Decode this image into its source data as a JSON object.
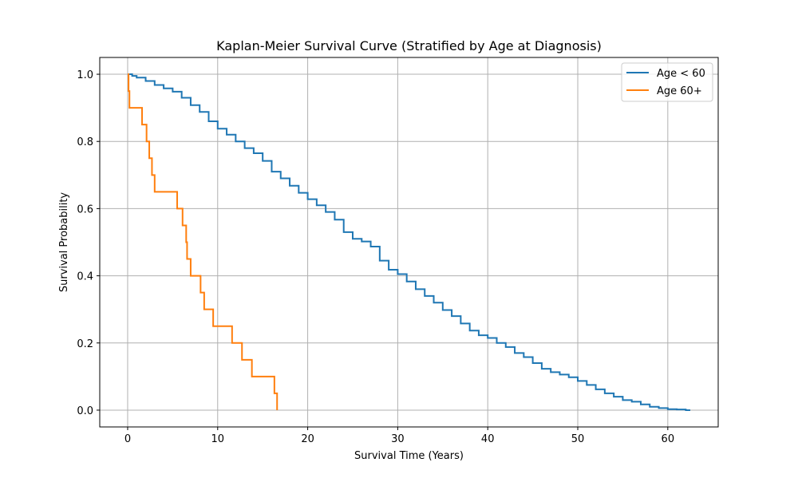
{
  "chart_data": {
    "type": "line",
    "title": "Kaplan-Meier Survival Curve (Stratified by Age at Diagnosis)",
    "xlabel": "Survival Time (Years)",
    "ylabel": "Survival Probability",
    "xlim": [
      -3.1,
      65.6
    ],
    "ylim": [
      -0.05,
      1.05
    ],
    "xticks": [
      0,
      10,
      20,
      30,
      40,
      50,
      60
    ],
    "yticks": [
      0.0,
      0.2,
      0.4,
      0.6,
      0.8,
      1.0
    ],
    "xtick_labels": [
      "0",
      "10",
      "20",
      "30",
      "40",
      "50",
      "60"
    ],
    "ytick_labels": [
      "0.0",
      "0.2",
      "0.4",
      "0.6",
      "0.8",
      "1.0"
    ],
    "grid": true,
    "legend_position": "top-right",
    "step": true,
    "series": [
      {
        "name": "Age < 60",
        "color": "#1f77b4",
        "x": [
          0,
          0.5,
          1,
          2,
          3,
          4,
          5,
          6,
          7,
          8,
          9,
          10,
          11,
          12,
          13,
          14,
          15,
          16,
          17,
          18,
          19,
          20,
          21,
          22,
          23,
          24,
          25,
          26,
          27,
          28,
          29,
          30,
          31,
          32,
          33,
          34,
          35,
          36,
          37,
          38,
          39,
          40,
          41,
          42,
          43,
          44,
          45,
          46,
          47,
          48,
          49,
          50,
          51,
          52,
          53,
          54,
          55,
          56,
          57,
          58,
          59,
          60,
          61,
          62,
          62.5
        ],
        "y": [
          1.0,
          0.995,
          0.99,
          0.98,
          0.968,
          0.958,
          0.948,
          0.93,
          0.908,
          0.888,
          0.86,
          0.838,
          0.82,
          0.8,
          0.78,
          0.765,
          0.742,
          0.71,
          0.69,
          0.668,
          0.647,
          0.628,
          0.61,
          0.59,
          0.567,
          0.53,
          0.51,
          0.502,
          0.487,
          0.445,
          0.418,
          0.405,
          0.383,
          0.36,
          0.34,
          0.32,
          0.298,
          0.28,
          0.258,
          0.237,
          0.223,
          0.215,
          0.2,
          0.188,
          0.17,
          0.158,
          0.14,
          0.123,
          0.113,
          0.106,
          0.098,
          0.087,
          0.075,
          0.062,
          0.05,
          0.04,
          0.03,
          0.025,
          0.017,
          0.01,
          0.006,
          0.003,
          0.002,
          0.0,
          0.0
        ]
      },
      {
        "name": "Age 60+",
        "color": "#ff7f0e",
        "x": [
          0,
          0.1,
          0.2,
          1.6,
          2.1,
          2.4,
          2.7,
          3.0,
          4.0,
          5.5,
          6.1,
          6.5,
          6.6,
          7.0,
          8.1,
          8.5,
          9.5,
          11.6,
          12.7,
          13.8,
          16.3,
          16.6
        ],
        "y": [
          1.0,
          0.95,
          0.9,
          0.85,
          0.8,
          0.75,
          0.7,
          0.65,
          0.65,
          0.6,
          0.55,
          0.5,
          0.45,
          0.4,
          0.35,
          0.3,
          0.25,
          0.2,
          0.15,
          0.1,
          0.05,
          0.0
        ]
      }
    ]
  }
}
